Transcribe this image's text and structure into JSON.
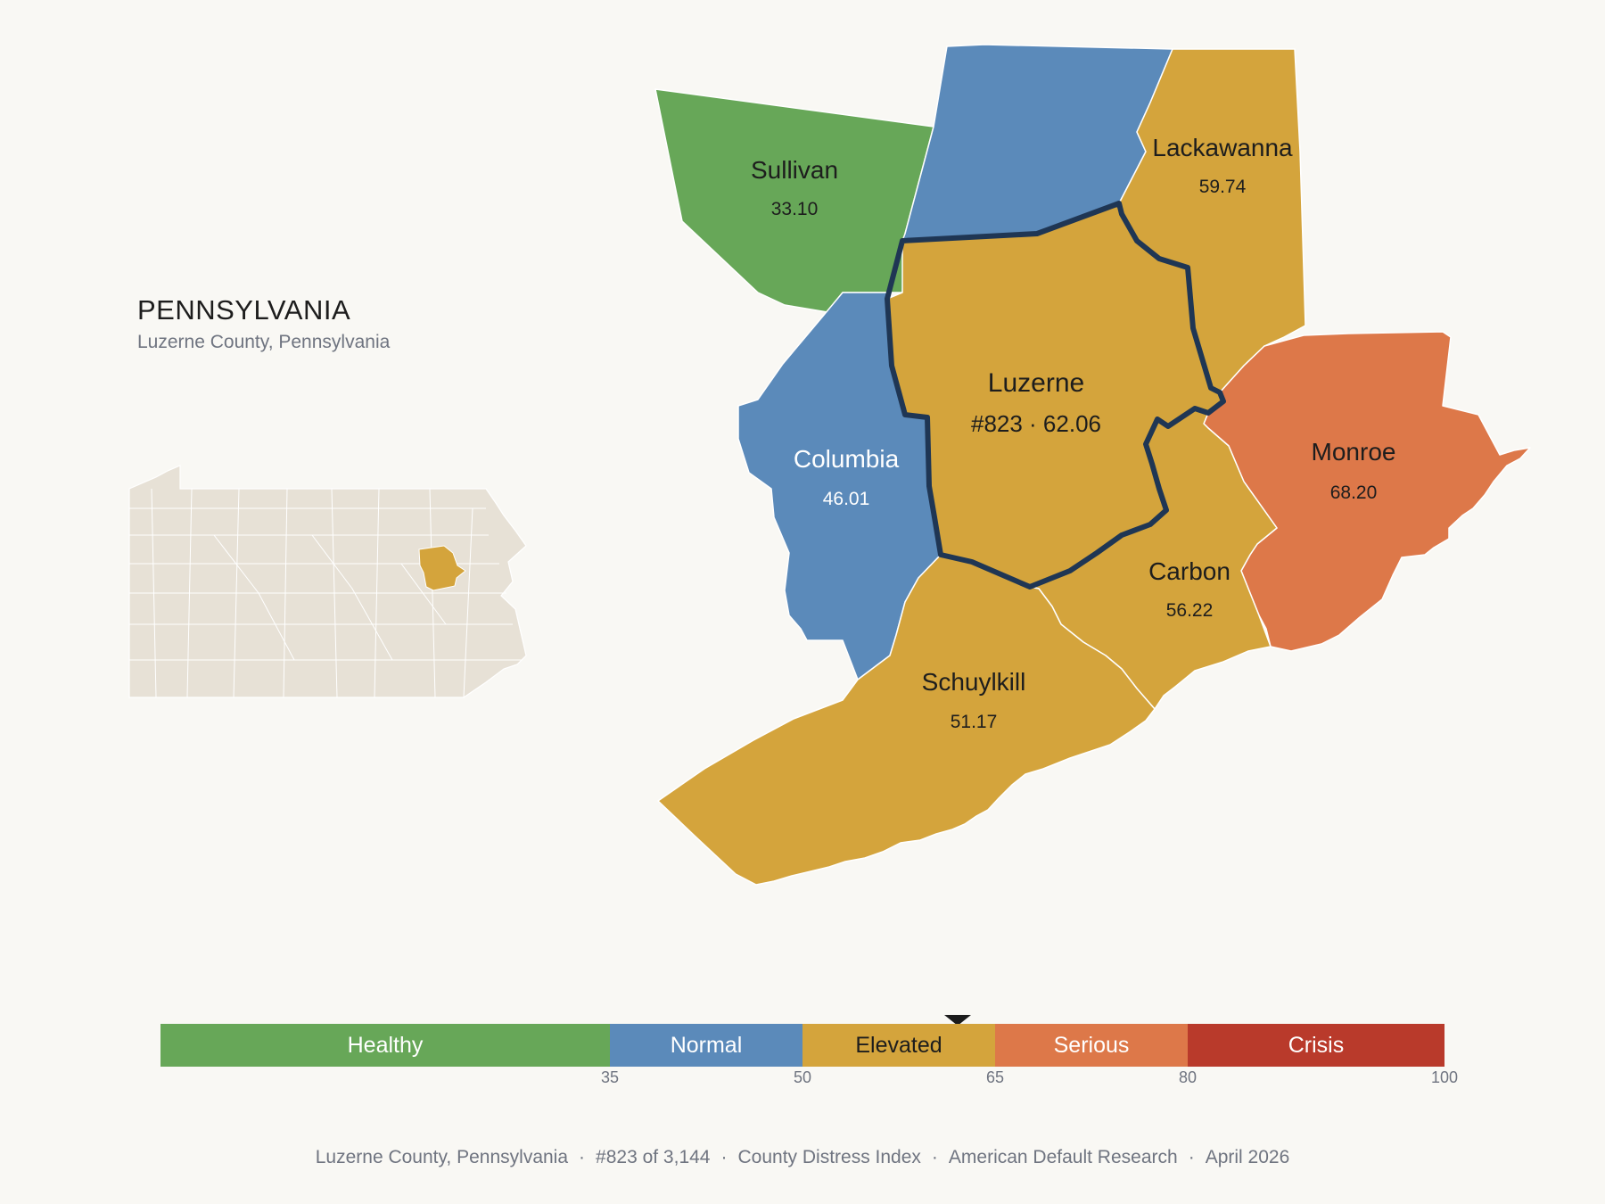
{
  "header": {
    "state": "PENNSYLVANIA",
    "subtitle": "Luzerne County, Pennsylvania"
  },
  "colors": {
    "healthy": "#67a758",
    "normal": "#5b8aba",
    "elevated": "#d4a43c",
    "serious": "#dd7849",
    "crisis": "#b93a2b",
    "inset_fill": "#e7e1d6",
    "highlight_outline": "#1f3654",
    "background": "#f9f8f4"
  },
  "counties": [
    {
      "name": "Sullivan",
      "value": "33.10",
      "category": "Healthy"
    },
    {
      "name": "Lackawanna",
      "value": "59.74",
      "category": "Elevated"
    },
    {
      "name": "Luzerne",
      "value": "#823 · 62.06",
      "category": "Elevated",
      "highlighted": true
    },
    {
      "name": "Columbia",
      "value": "46.01",
      "category": "Normal"
    },
    {
      "name": "Monroe",
      "value": "68.20",
      "category": "Serious"
    },
    {
      "name": "Carbon",
      "value": "56.22",
      "category": "Elevated"
    },
    {
      "name": "Schuylkill",
      "value": "51.17",
      "category": "Elevated"
    },
    {
      "name": "",
      "value": "",
      "category": "Normal"
    }
  ],
  "scale": {
    "bands": [
      {
        "label": "Healthy",
        "from": 0,
        "to": 35,
        "color": "#67a758",
        "text_color": "#ffffff"
      },
      {
        "label": "Normal",
        "from": 35,
        "to": 50,
        "color": "#5b8aba",
        "text_color": "#ffffff"
      },
      {
        "label": "Elevated",
        "from": 50,
        "to": 65,
        "color": "#d4a43c",
        "text_color": "#1d1d1d"
      },
      {
        "label": "Serious",
        "from": 65,
        "to": 80,
        "color": "#dd7849",
        "text_color": "#ffffff"
      },
      {
        "label": "Crisis",
        "from": 80,
        "to": 100,
        "color": "#b93a2b",
        "text_color": "#ffffff"
      }
    ],
    "ticks": [
      "35",
      "50",
      "65",
      "80",
      "100"
    ],
    "marker_value": 62.06
  },
  "footer": {
    "items": [
      "Luzerne County, Pennsylvania",
      "#823 of 3,144",
      "County Distress Index",
      "American Default Research",
      "April 2026"
    ],
    "separator": "·"
  }
}
